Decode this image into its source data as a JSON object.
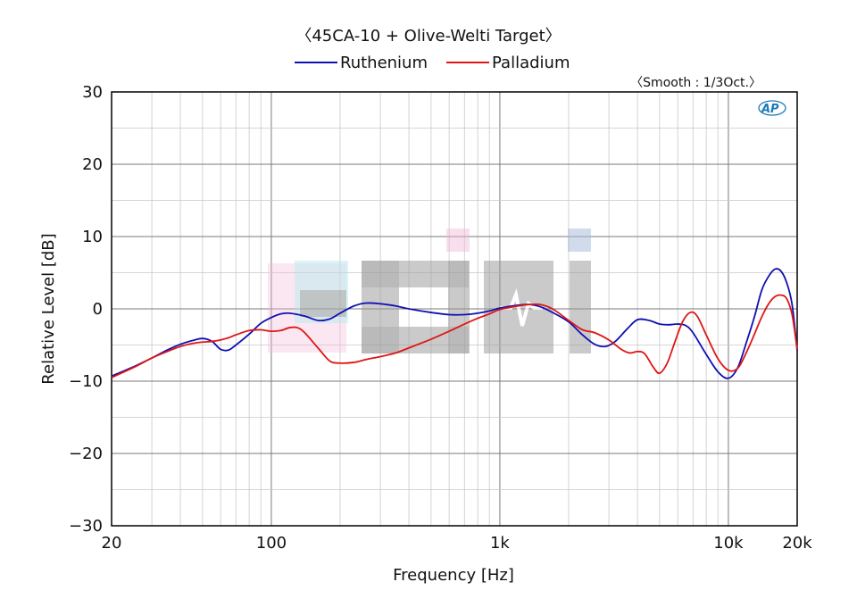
{
  "chart_data": {
    "type": "line",
    "title": "〈45CA-10 + Olive-Welti Target〉",
    "smoothing_note": "〈Smooth : 1/3Oct.〉",
    "xlabel": "Frequency [Hz]",
    "ylabel": "Relative Level [dB]",
    "xscale": "log",
    "xlim": [
      20,
      20000
    ],
    "ylim": [
      -30,
      30
    ],
    "x_ticks": [
      {
        "value": 20,
        "label": "20"
      },
      {
        "value": 100,
        "label": "100"
      },
      {
        "value": 1000,
        "label": "1k"
      },
      {
        "value": 10000,
        "label": "10k"
      },
      {
        "value": 20000,
        "label": "20k"
      }
    ],
    "y_ticks": [
      {
        "value": 30,
        "label": "30"
      },
      {
        "value": 20,
        "label": "20"
      },
      {
        "value": 10,
        "label": "10"
      },
      {
        "value": 0,
        "label": "0"
      },
      {
        "value": -10,
        "label": "−10"
      },
      {
        "value": -20,
        "label": "−20"
      },
      {
        "value": -30,
        "label": "−30"
      }
    ],
    "grid": true,
    "legend_position": "top-center",
    "series": [
      {
        "name": "Ruthenium",
        "color": "#1010b0",
        "points": [
          [
            20,
            -9.3
          ],
          [
            25,
            -8.0
          ],
          [
            30,
            -6.8
          ],
          [
            35,
            -5.7
          ],
          [
            40,
            -4.9
          ],
          [
            45,
            -4.4
          ],
          [
            50,
            -4.1
          ],
          [
            55,
            -4.5
          ],
          [
            60,
            -5.6
          ],
          [
            65,
            -5.7
          ],
          [
            70,
            -5.0
          ],
          [
            80,
            -3.5
          ],
          [
            90,
            -2.0
          ],
          [
            100,
            -1.2
          ],
          [
            110,
            -0.7
          ],
          [
            120,
            -0.6
          ],
          [
            140,
            -1.0
          ],
          [
            160,
            -1.6
          ],
          [
            180,
            -1.4
          ],
          [
            200,
            -0.6
          ],
          [
            230,
            0.4
          ],
          [
            260,
            0.8
          ],
          [
            300,
            0.7
          ],
          [
            350,
            0.4
          ],
          [
            400,
            0.0
          ],
          [
            500,
            -0.5
          ],
          [
            600,
            -0.8
          ],
          [
            700,
            -0.8
          ],
          [
            800,
            -0.6
          ],
          [
            900,
            -0.3
          ],
          [
            1000,
            0.1
          ],
          [
            1200,
            0.5
          ],
          [
            1350,
            0.6
          ],
          [
            1500,
            0.3
          ],
          [
            1700,
            -0.5
          ],
          [
            2000,
            -1.8
          ],
          [
            2300,
            -3.6
          ],
          [
            2600,
            -4.9
          ],
          [
            2900,
            -5.2
          ],
          [
            3200,
            -4.5
          ],
          [
            3600,
            -2.8
          ],
          [
            4000,
            -1.5
          ],
          [
            4500,
            -1.6
          ],
          [
            5000,
            -2.1
          ],
          [
            5500,
            -2.2
          ],
          [
            6000,
            -2.1
          ],
          [
            6500,
            -2.3
          ],
          [
            7000,
            -3.3
          ],
          [
            8000,
            -6.3
          ],
          [
            9000,
            -8.7
          ],
          [
            10000,
            -9.6
          ],
          [
            11000,
            -8.1
          ],
          [
            12000,
            -4.6
          ],
          [
            13000,
            -1.1
          ],
          [
            14000,
            2.6
          ],
          [
            15000,
            4.5
          ],
          [
            16000,
            5.5
          ],
          [
            17000,
            5.2
          ],
          [
            18000,
            3.6
          ],
          [
            19000,
            0.6
          ],
          [
            20000,
            -5.8
          ]
        ]
      },
      {
        "name": "Palladium",
        "color": "#e01515",
        "points": [
          [
            20,
            -9.5
          ],
          [
            25,
            -8.1
          ],
          [
            30,
            -6.8
          ],
          [
            35,
            -5.9
          ],
          [
            40,
            -5.2
          ],
          [
            45,
            -4.8
          ],
          [
            50,
            -4.6
          ],
          [
            55,
            -4.5
          ],
          [
            60,
            -4.3
          ],
          [
            65,
            -4.0
          ],
          [
            70,
            -3.6
          ],
          [
            80,
            -3.0
          ],
          [
            90,
            -2.9
          ],
          [
            100,
            -3.1
          ],
          [
            110,
            -3.0
          ],
          [
            120,
            -2.6
          ],
          [
            130,
            -2.6
          ],
          [
            140,
            -3.3
          ],
          [
            160,
            -5.4
          ],
          [
            180,
            -7.2
          ],
          [
            200,
            -7.5
          ],
          [
            230,
            -7.4
          ],
          [
            260,
            -7.0
          ],
          [
            300,
            -6.6
          ],
          [
            350,
            -6.1
          ],
          [
            400,
            -5.4
          ],
          [
            500,
            -4.2
          ],
          [
            600,
            -3.1
          ],
          [
            700,
            -2.1
          ],
          [
            800,
            -1.3
          ],
          [
            900,
            -0.7
          ],
          [
            1000,
            -0.1
          ],
          [
            1200,
            0.4
          ],
          [
            1350,
            0.6
          ],
          [
            1500,
            0.6
          ],
          [
            1700,
            0.0
          ],
          [
            2000,
            -1.6
          ],
          [
            2300,
            -2.9
          ],
          [
            2600,
            -3.3
          ],
          [
            3000,
            -4.3
          ],
          [
            3400,
            -5.6
          ],
          [
            3700,
            -6.1
          ],
          [
            4000,
            -5.9
          ],
          [
            4300,
            -6.2
          ],
          [
            4700,
            -8.1
          ],
          [
            5000,
            -8.9
          ],
          [
            5400,
            -7.5
          ],
          [
            5800,
            -4.8
          ],
          [
            6300,
            -1.8
          ],
          [
            6800,
            -0.5
          ],
          [
            7300,
            -1.0
          ],
          [
            8000,
            -3.6
          ],
          [
            9000,
            -6.9
          ],
          [
            10000,
            -8.5
          ],
          [
            11000,
            -8.2
          ],
          [
            12000,
            -6.0
          ],
          [
            13000,
            -3.5
          ],
          [
            14000,
            -1.1
          ],
          [
            15000,
            0.7
          ],
          [
            16000,
            1.7
          ],
          [
            17000,
            1.9
          ],
          [
            18000,
            1.4
          ],
          [
            19000,
            -0.8
          ],
          [
            20000,
            -5.6
          ]
        ]
      }
    ]
  },
  "colors": {
    "axis": "#000000",
    "grid_major": "#7a7a7a",
    "grid_minor": "#c8c8c8",
    "watermark_gray": "#8c8c8c",
    "watermark_pink": "#f4b8d8",
    "watermark_cyan": "#a8e6ea",
    "ap_logo": "#1a7ab8"
  },
  "icons": {
    "ap_logo": "ap-logo-icon",
    "watermark": "watermark-logo-icon"
  }
}
